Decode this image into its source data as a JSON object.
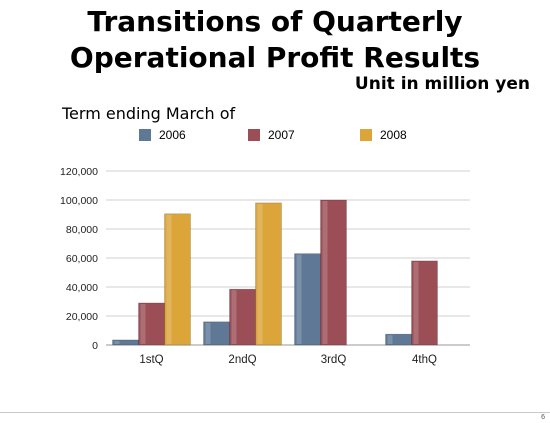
{
  "slide": {
    "title_line1": "Transitions of Quarterly",
    "title_line2": "Operational Profit Results",
    "unit": "Unit in million yen",
    "term_label": "Term ending March of",
    "page_number": "6"
  },
  "colors": {
    "2006": "#5e7896",
    "2007": "#9c4e56",
    "2008": "#dba53a"
  },
  "chart_data": {
    "type": "bar",
    "categories": [
      "1stQ",
      "2ndQ",
      "3rdQ",
      "4thQ"
    ],
    "series": [
      {
        "name": "2006",
        "values": [
          3500,
          16000,
          63000,
          7500
        ]
      },
      {
        "name": "2007",
        "values": [
          29000,
          38500,
          100000,
          58000
        ]
      },
      {
        "name": "2008",
        "values": [
          90500,
          98000,
          null,
          null
        ]
      }
    ],
    "ylim": [
      0,
      120000
    ],
    "yticks": [
      0,
      20000,
      40000,
      60000,
      80000,
      100000,
      120000
    ],
    "ytick_labels": [
      "0",
      "20,000",
      "40,000",
      "60,000",
      "80,000",
      "100,000",
      "120,000"
    ],
    "legend_position": "top",
    "grid": true
  }
}
